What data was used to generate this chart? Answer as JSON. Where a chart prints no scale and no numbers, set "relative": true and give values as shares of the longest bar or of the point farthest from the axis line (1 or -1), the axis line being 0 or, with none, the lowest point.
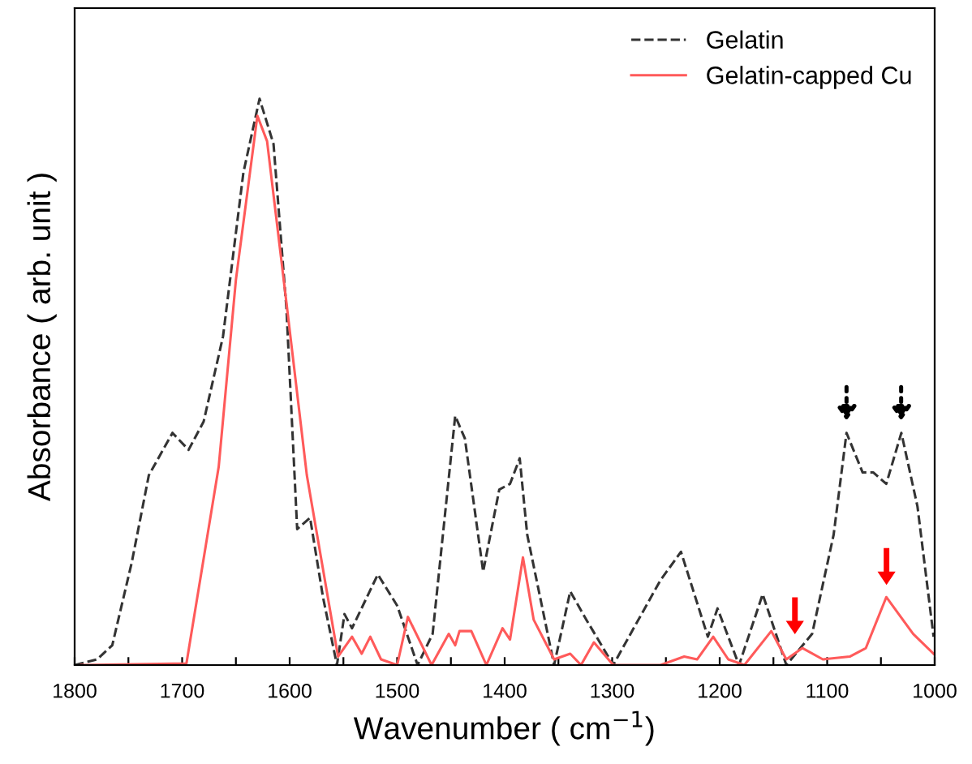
{
  "chart_data": {
    "type": "line",
    "relative": true,
    "xlabel": "Wavenumber ( cm$^{−1}$)",
    "ylabel": "Absorbance ( arb. unit )",
    "tick_labels": "x",
    "legend": "top right",
    "grid": false,
    "marker": "none",
    "xlim": [
      1800,
      1000
    ],
    "xticks": [
      1800,
      {
        "value": 1750,
        "label": null
      },
      1700,
      {
        "value": 1650,
        "label": null
      },
      1600,
      {
        "value": 1550,
        "label": null
      },
      1500,
      {
        "value": 1450,
        "label": null
      },
      1400,
      {
        "value": 1350,
        "label": null
      },
      1300,
      {
        "value": 1250,
        "label": null
      },
      1200,
      {
        "value": 1150,
        "label": null
      },
      1100,
      {
        "value": 1050,
        "label": null
      },
      1000
    ],
    "series": [
      {
        "name": "Gelatin",
        "color": "#333333",
        "line_style": "dashed",
        "x": [
          1800,
          1779,
          1765,
          1747,
          1731,
          1709,
          1694,
          1680,
          1662,
          1643,
          1628,
          1615,
          1603,
          1593,
          1581,
          1569,
          1556,
          1549,
          1542,
          1518,
          1500,
          1481,
          1467,
          1446,
          1437,
          1420,
          1405,
          1395,
          1386,
          1379,
          1354,
          1339,
          1324,
          1299,
          1280,
          1255,
          1236,
          1211,
          1202,
          1182,
          1160,
          1138,
          1114,
          1094,
          1082,
          1067,
          1057,
          1045,
          1031,
          1016,
          1001
        ],
        "values": [
          0,
          0.01,
          0.035,
          0.18,
          0.335,
          0.41,
          0.38,
          0.43,
          0.58,
          0.87,
          1.0,
          0.92,
          0.63,
          0.24,
          0.26,
          0.12,
          0,
          0.09,
          0.065,
          0.16,
          0.105,
          0,
          0.055,
          0.44,
          0.4,
          0.165,
          0.31,
          0.32,
          0.365,
          0.23,
          0,
          0.13,
          0.08,
          0,
          0.065,
          0.15,
          0.2,
          0.05,
          0.1,
          0,
          0.125,
          0,
          0.055,
          0.23,
          0.41,
          0.34,
          0.34,
          0.32,
          0.41,
          0.28,
          0.05
        ]
      },
      {
        "name": "Gelatin-capped Cu",
        "color": "#ff5a5a",
        "line_style": "solid",
        "x": [
          1794,
          1696,
          1666,
          1650,
          1630,
          1621,
          1603,
          1584,
          1555,
          1542,
          1533,
          1525,
          1515,
          1500,
          1490,
          1468,
          1452,
          1446,
          1442,
          1431,
          1417,
          1402,
          1395,
          1383,
          1373,
          1354,
          1339,
          1329,
          1317,
          1299,
          1255,
          1233,
          1221,
          1206,
          1192,
          1177,
          1152,
          1138,
          1123,
          1104,
          1079,
          1064,
          1045,
          1020,
          1001
        ],
        "values": [
          0,
          0.003,
          0.35,
          0.68,
          0.97,
          0.925,
          0.64,
          0.335,
          0.015,
          0.05,
          0.02,
          0.05,
          0.01,
          0,
          0.085,
          0,
          0.055,
          0.035,
          0.06,
          0.06,
          0,
          0.065,
          0.045,
          0.19,
          0.08,
          0.01,
          0.02,
          0,
          0.04,
          0,
          0,
          0.015,
          0.01,
          0.05,
          0.01,
          0,
          0.06,
          0.01,
          0.03,
          0.01,
          0.015,
          0.03,
          0.12,
          0.055,
          0.02
        ]
      }
    ]
  }
}
